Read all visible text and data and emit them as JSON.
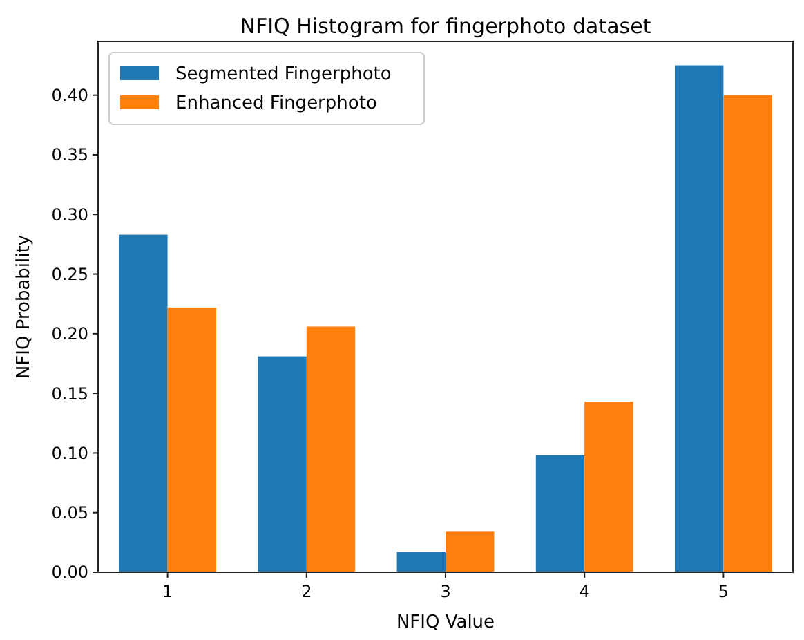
{
  "chart_data": {
    "type": "bar",
    "title": "NFIQ Histogram for fingerphoto dataset",
    "xlabel": "NFIQ Value",
    "ylabel": "NFIQ Probability",
    "categories": [
      "1",
      "2",
      "3",
      "4",
      "5"
    ],
    "series": [
      {
        "name": "Segmented Fingerphoto",
        "color": "#1f77b4",
        "values": [
          0.283,
          0.181,
          0.017,
          0.098,
          0.425
        ]
      },
      {
        "name": "Enhanced Fingerphoto",
        "color": "#ff7f0e",
        "values": [
          0.222,
          0.206,
          0.034,
          0.143,
          0.4
        ]
      }
    ],
    "ylim": [
      0,
      0.445
    ],
    "yticks": [
      {
        "value": 0,
        "label": "0.00"
      },
      {
        "value": 0.05,
        "label": "0.05"
      },
      {
        "value": 0.1,
        "label": "0.10"
      },
      {
        "value": 0.15,
        "label": "0.15"
      },
      {
        "value": 0.2,
        "label": "0.20"
      },
      {
        "value": 0.25,
        "label": "0.25"
      },
      {
        "value": 0.3,
        "label": "0.30"
      },
      {
        "value": 0.35,
        "label": "0.35"
      },
      {
        "value": 0.4,
        "label": "0.40"
      }
    ],
    "legend": "top left"
  }
}
